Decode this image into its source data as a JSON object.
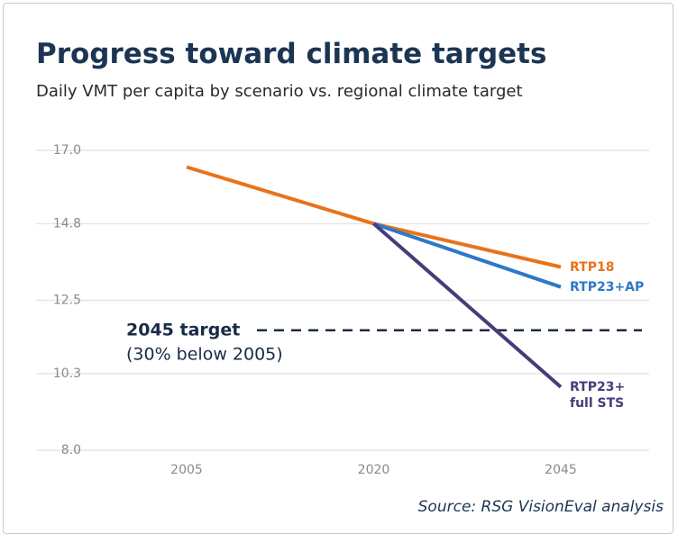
{
  "chart_data": {
    "type": "line",
    "title": "Progress toward climate targets",
    "subtitle": "Daily VMT per capita by scenario vs. regional climate target",
    "source": "Source: RSG VisionEval analysis",
    "categories": [
      "2005",
      "2020",
      "2045"
    ],
    "series": [
      {
        "name": "RTP18",
        "color": "#e8731c",
        "values": [
          16.5,
          14.8,
          13.5
        ]
      },
      {
        "name": "RTP23+AP",
        "color": "#2e78c7",
        "values": [
          null,
          14.8,
          12.9
        ]
      },
      {
        "name": "RTP23+ full STS",
        "color": "#4b3a78",
        "values": [
          null,
          14.8,
          9.9
        ]
      }
    ],
    "target": {
      "value": 11.6,
      "label": "2045 target",
      "note": "(30% below 2005)",
      "color": "#1a2b48"
    },
    "ylim": [
      8,
      17
    ],
    "yticks": [
      {
        "value": 8,
        "label": "8.0"
      },
      10.3,
      12.5,
      14.8,
      {
        "value": 17,
        "label": "17.0"
      }
    ],
    "grid": true
  }
}
